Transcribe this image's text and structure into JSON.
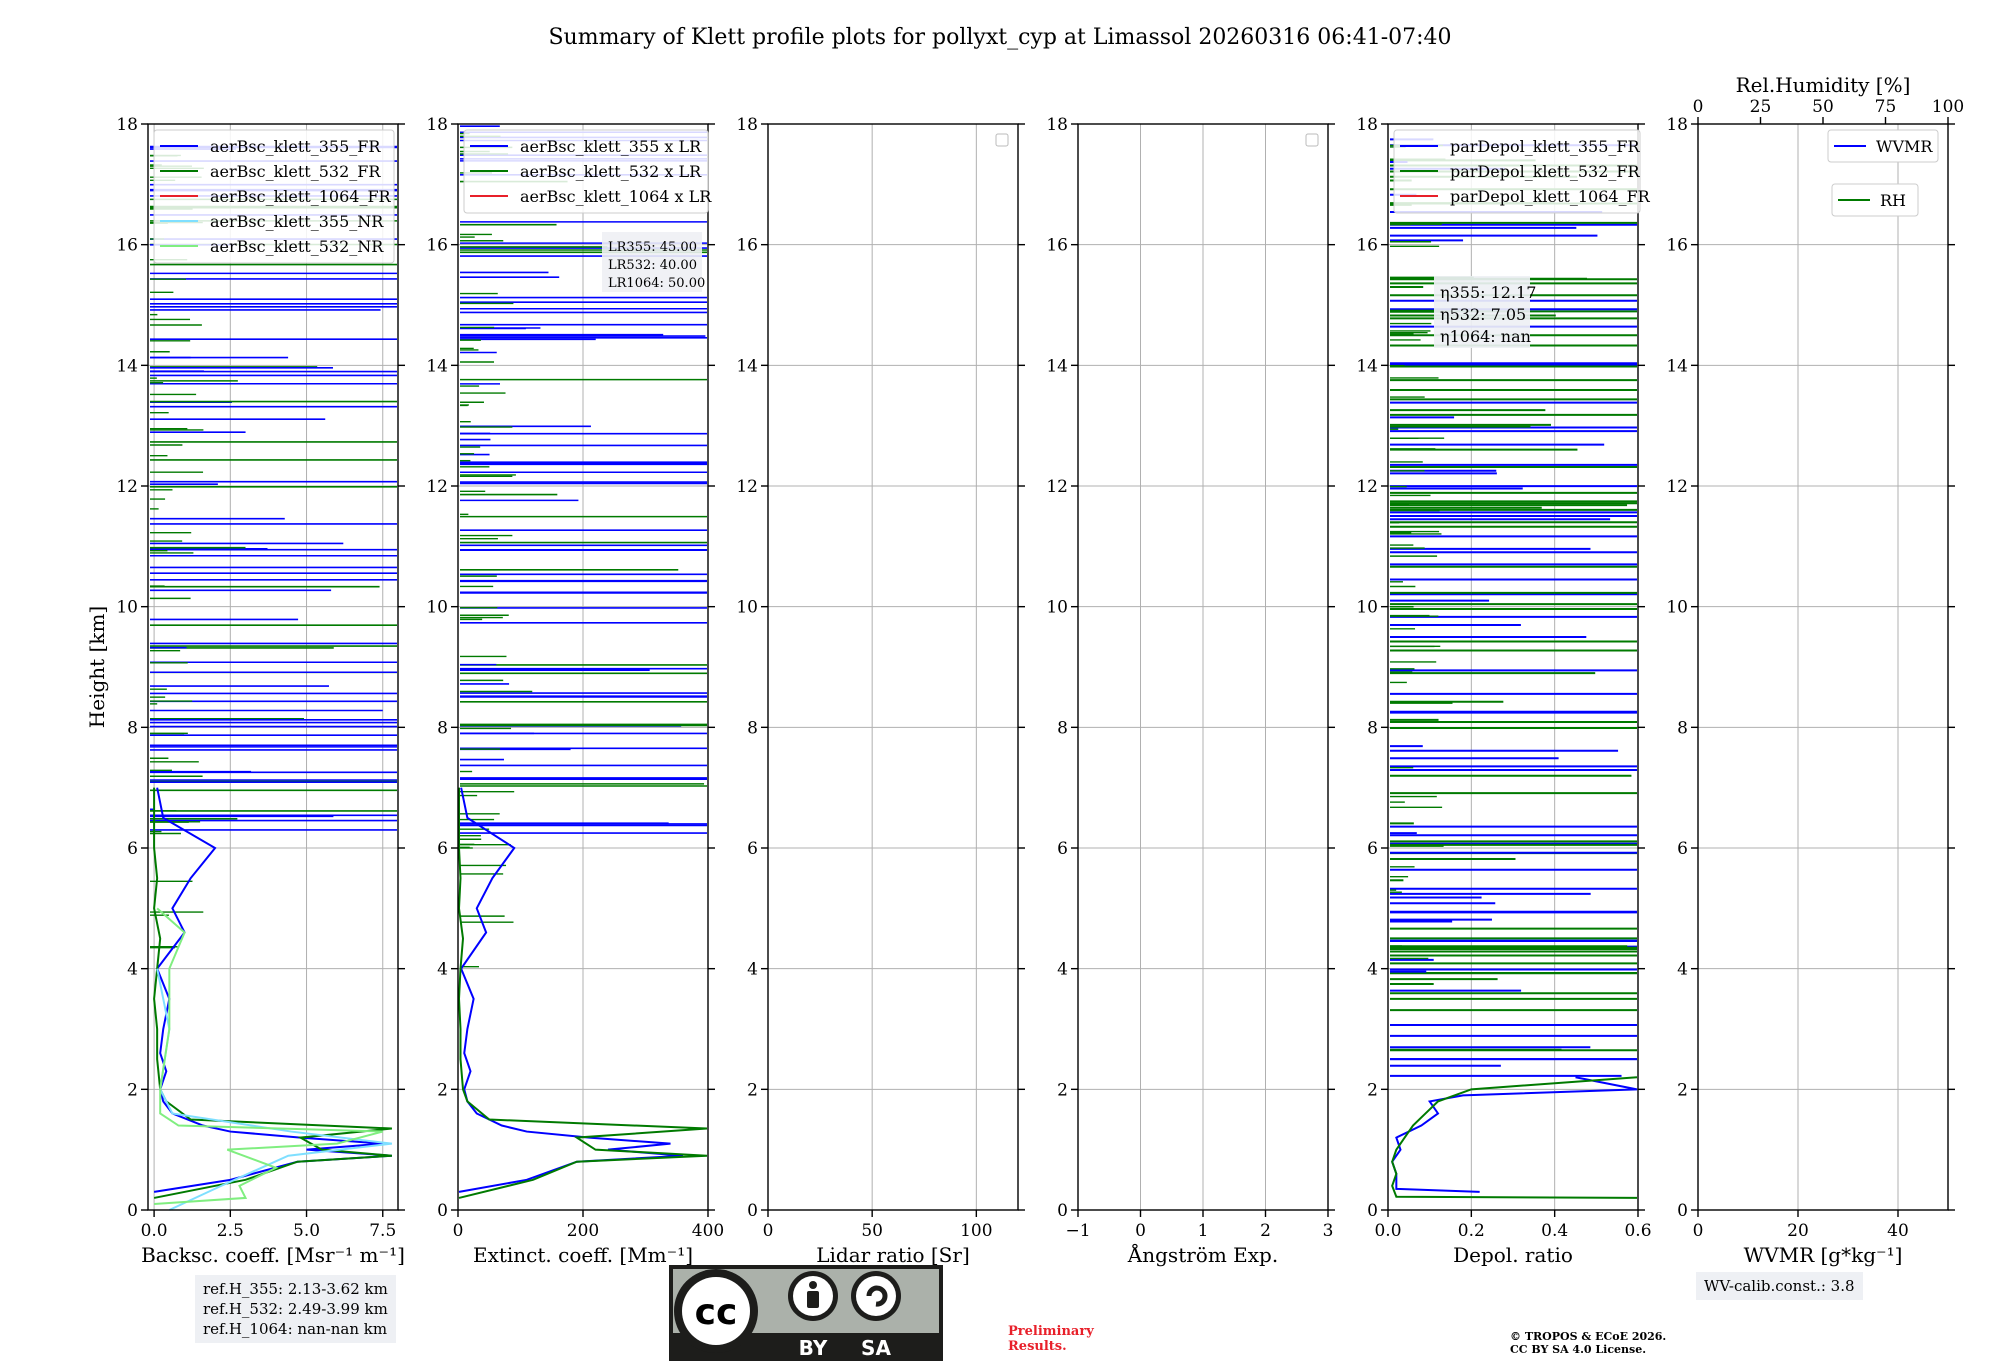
{
  "title": "Summary of Klett profile plots for pollyxt_cyp at Limassol 20260316 06:41-07:40",
  "colors": {
    "blue": "#0000ff",
    "green": "#007a00",
    "red": "#e8202a",
    "cyan": "#7fdfff",
    "lightgreen": "#80ee80",
    "grid": "#b0b0b0",
    "box": "#eef0f4"
  },
  "chart_data": [
    {
      "type": "line",
      "id": "backscatter",
      "xlabel": "Backsc. coeff. [Msr⁻¹ m⁻¹]",
      "ylabel": "Height [km]",
      "xlim": [
        -0.2,
        8
      ],
      "ylim": [
        0,
        18
      ],
      "xticks": [
        0,
        2.5,
        5,
        7.5
      ],
      "xtick_labels": [
        "0.0",
        "2.5",
        "5.0",
        "7.5"
      ],
      "yticks": [
        0,
        2,
        4,
        6,
        8,
        10,
        12,
        14,
        16,
        18
      ],
      "legend": [
        "aerBsc_klett_355_FR",
        "aerBsc_klett_532_FR",
        "aerBsc_klett_1064_FR",
        "aerBsc_klett_355_NR",
        "aerBsc_klett_532_NR"
      ],
      "series": [
        {
          "name": "aerBsc_klett_355_FR",
          "color": "blue",
          "h": [
            0.3,
            0.5,
            0.8,
            0.9,
            1.0,
            1.1,
            1.2,
            1.3,
            1.4,
            1.6,
            1.8,
            2.0,
            2.3,
            2.6,
            3.0,
            3.5,
            4.0,
            4.6,
            5.0,
            5.5,
            6.0,
            6.5,
            7.0
          ],
          "v": [
            0.0,
            2.5,
            4.7,
            7.8,
            5.0,
            7.5,
            4.8,
            2.5,
            1.6,
            0.6,
            0.3,
            0.2,
            0.4,
            0.2,
            0.3,
            0.5,
            0.1,
            1.0,
            0.6,
            1.2,
            2.0,
            0.3,
            0.1
          ]
        },
        {
          "name": "aerBsc_klett_532_FR",
          "color": "green",
          "h": [
            0.2,
            0.5,
            0.8,
            0.9,
            1.0,
            1.2,
            1.35,
            1.5,
            1.8,
            2.0,
            2.5,
            3.0,
            3.5,
            4.0,
            4.5,
            5.0,
            5.5,
            6.0,
            7.0
          ],
          "v": [
            0.0,
            3.0,
            4.7,
            7.8,
            5.5,
            4.8,
            7.8,
            1.2,
            0.4,
            0.2,
            0.1,
            0.1,
            0.0,
            0.1,
            0.2,
            0.0,
            0.1,
            0.0,
            0.0
          ]
        },
        {
          "name": "aerBsc_klett_355_NR",
          "color": "cyan",
          "h": [
            0.0,
            0.4,
            0.9,
            1.1,
            1.3,
            1.6,
            2.0,
            3.0,
            4.0
          ],
          "v": [
            0.5,
            2.2,
            4.4,
            7.8,
            4.5,
            0.6,
            0.2,
            0.5,
            0.1
          ]
        },
        {
          "name": "aerBsc_klett_532_NR",
          "color": "lightgreen",
          "h": [
            0.1,
            0.2,
            0.4,
            0.7,
            1.0,
            1.1,
            1.3,
            1.4,
            1.6,
            2.0,
            3.0,
            4.0,
            4.6,
            5.0
          ],
          "v": [
            0.0,
            3.0,
            2.8,
            4.0,
            2.4,
            6.0,
            7.5,
            0.8,
            0.2,
            0.2,
            0.5,
            0.5,
            1.0,
            0.1
          ]
        }
      ],
      "texts": []
    },
    {
      "type": "line",
      "id": "extinction",
      "xlabel": "Extinct. coeff. [Mm⁻¹]",
      "xlim": [
        0,
        400
      ],
      "ylim": [
        0,
        18
      ],
      "xticks": [
        0,
        200,
        400
      ],
      "xtick_labels": [
        "0",
        "200",
        "400"
      ],
      "yticks": [
        0,
        2,
        4,
        6,
        8,
        10,
        12,
        14,
        16,
        18
      ],
      "legend": [
        "aerBsc_klett_355 x LR",
        "aerBsc_klett_532 x LR",
        "aerBsc_klett_1064 x LR"
      ],
      "lr_lines": [
        "LR355: 45.00",
        "LR532: 40.00",
        "LR1064: 50.00"
      ],
      "series": [
        {
          "name": "aerBsc_klett_355 x LR",
          "color": "blue",
          "h": [
            0.3,
            0.5,
            0.8,
            0.9,
            1.0,
            1.1,
            1.2,
            1.3,
            1.4,
            1.6,
            1.8,
            2.0,
            2.3,
            2.6,
            3.0,
            3.5,
            4.0,
            4.6,
            5.0,
            5.5,
            6.0,
            6.5,
            7.0
          ],
          "v": [
            0,
            110,
            190,
            360,
            240,
            340,
            210,
            110,
            70,
            30,
            15,
            10,
            20,
            10,
            15,
            25,
            5,
            45,
            30,
            55,
            90,
            15,
            5
          ]
        },
        {
          "name": "aerBsc_klett_532 x LR",
          "color": "green",
          "h": [
            0.2,
            0.5,
            0.8,
            0.9,
            1.0,
            1.2,
            1.35,
            1.5,
            1.8,
            2.0,
            2.5,
            3.0,
            3.5,
            4.0,
            4.5,
            5.0,
            5.5,
            6.0,
            7.0
          ],
          "v": [
            0,
            120,
            190,
            400,
            220,
            190,
            400,
            50,
            15,
            8,
            4,
            4,
            0,
            4,
            8,
            0,
            4,
            0,
            0
          ]
        }
      ]
    },
    {
      "type": "line",
      "id": "lidar_ratio",
      "xlabel": "Lidar ratio [Sr]",
      "xlim": [
        0,
        120
      ],
      "ylim": [
        0,
        18
      ],
      "xticks": [
        0,
        50,
        100
      ],
      "xtick_labels": [
        "0",
        "50",
        "100"
      ],
      "yticks": [
        0,
        2,
        4,
        6,
        8,
        10,
        12,
        14,
        16,
        18
      ],
      "series": []
    },
    {
      "type": "line",
      "id": "angstrom",
      "xlabel": "Ångström Exp.",
      "xlim": [
        -1,
        3
      ],
      "ylim": [
        0,
        18
      ],
      "xticks": [
        -1,
        0,
        1,
        2,
        3
      ],
      "xtick_labels": [
        "−1",
        "0",
        "1",
        "2",
        "3"
      ],
      "yticks": [
        0,
        2,
        4,
        6,
        8,
        10,
        12,
        14,
        16,
        18
      ],
      "series": []
    },
    {
      "type": "line",
      "id": "depol",
      "xlabel": "Depol. ratio",
      "xlim": [
        0,
        0.6
      ],
      "ylim": [
        0,
        18
      ],
      "xticks": [
        0,
        0.2,
        0.4,
        0.6
      ],
      "xtick_labels": [
        "0.0",
        "0.2",
        "0.4",
        "0.6"
      ],
      "yticks": [
        0,
        2,
        4,
        6,
        8,
        10,
        12,
        14,
        16,
        18
      ],
      "legend": [
        "parDepol_klett_355_FR",
        "parDepol_klett_532_FR",
        "parDepol_klett_1064_FR"
      ],
      "eta_lines": [
        "η355: 12.17",
        "η532: 7.05",
        "η1064: nan"
      ],
      "series": [
        {
          "name": "parDepol_klett_355_FR",
          "color": "blue",
          "h": [
            0.3,
            0.35,
            0.4,
            0.6,
            0.8,
            1.0,
            1.2,
            1.4,
            1.6,
            1.8,
            1.9,
            2.0,
            2.2
          ],
          "v": [
            0.22,
            0.02,
            0.02,
            0.02,
            0.01,
            0.03,
            0.02,
            0.08,
            0.12,
            0.1,
            0.18,
            0.6,
            0.45
          ]
        },
        {
          "name": "parDepol_klett_532_FR",
          "color": "green",
          "h": [
            0.2,
            0.22,
            0.4,
            0.6,
            0.8,
            1.0,
            1.2,
            1.4,
            1.6,
            1.8,
            2.0,
            2.2
          ],
          "v": [
            0.6,
            0.02,
            0.01,
            0.02,
            0.01,
            0.02,
            0.04,
            0.06,
            0.09,
            0.12,
            0.2,
            0.6
          ]
        }
      ]
    },
    {
      "type": "line",
      "id": "wvmr",
      "xlabel": "WVMR [g*kg⁻¹]",
      "top_xlabel": "Rel.Humidity [%]",
      "xlim": [
        0,
        50
      ],
      "ylim": [
        0,
        18
      ],
      "xticks": [
        0,
        20,
        40
      ],
      "xtick_labels": [
        "0",
        "20",
        "40"
      ],
      "top_xlim": [
        0,
        100
      ],
      "top_xticks": [
        0,
        25,
        50,
        75,
        100
      ],
      "top_xtick_labels": [
        "0",
        "25",
        "50",
        "75",
        "100"
      ],
      "yticks": [
        0,
        2,
        4,
        6,
        8,
        10,
        12,
        14,
        16,
        18
      ],
      "legend": [
        "WVMR",
        "RH"
      ],
      "series": []
    }
  ],
  "info": {
    "ref_lines": [
      "ref.H_355: 2.13-3.62 km",
      "ref.H_532: 2.49-3.99 km",
      "ref.H_1064: nan-nan km"
    ],
    "wv_calib": "WV-calib.const.: 3.8",
    "preliminary": [
      "Preliminary",
      "Results."
    ],
    "copyright": [
      "© TROPOS & ECoE 2026.",
      "CC BY SA 4.0 License."
    ],
    "cc_badge": {
      "by": "BY",
      "sa": "SA",
      "logo": "cc"
    }
  }
}
